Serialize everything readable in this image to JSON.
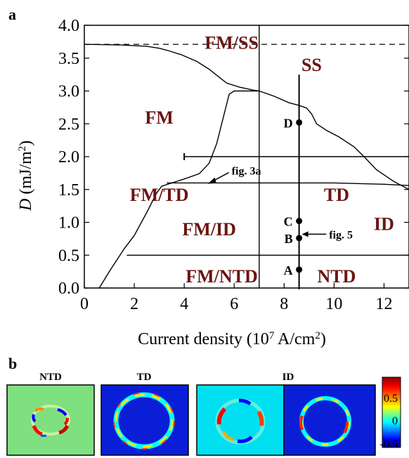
{
  "chart_data": {
    "type": "line",
    "panel_a": {
      "panel_label": "a",
      "xlabel": "Current density (10",
      "xlabel_sup": "7",
      "xlabel_tail": " A/cm",
      "xlabel_sup2": "2",
      "xlabel_close": ")",
      "ylabel": "D",
      "ylabel_unit": " (mJ/m",
      "ylabel_sup": "2",
      "ylabel_close": ")",
      "xlim": [
        0,
        13
      ],
      "ylim": [
        0,
        4.0
      ],
      "xticks": [
        0,
        2,
        4,
        6,
        8,
        10,
        12
      ],
      "yticks": [
        "0.0",
        "0.5",
        "1.0",
        "1.5",
        "2.0",
        "2.5",
        "3.0",
        "3.5",
        "4.0"
      ],
      "series": [
        {
          "x": [
            0,
            1.5,
            2.5,
            3.0,
            3.4,
            3.9,
            4.5,
            5.0,
            5.4,
            5.7,
            6.2,
            6.8,
            7.0
          ],
          "y": [
            3.71,
            3.7,
            3.68,
            3.65,
            3.61,
            3.55,
            3.45,
            3.33,
            3.21,
            3.12,
            3.06,
            3.01,
            3.0
          ]
        },
        {
          "x": [
            0.6,
            1.0,
            1.6,
            2.0,
            2.5,
            2.9,
            3.1,
            3.5,
            4.0,
            4.6,
            5.0,
            5.3,
            5.6,
            5.8,
            6.0,
            6.5,
            6.97
          ],
          "y": [
            0.0,
            0.25,
            0.6,
            0.8,
            1.15,
            1.45,
            1.55,
            1.6,
            1.66,
            1.74,
            1.9,
            2.2,
            2.65,
            2.95,
            3.0,
            3.0,
            3.0
          ]
        },
        {
          "x": [
            7.0,
            7.6,
            8.2,
            8.6,
            8.9,
            9.1,
            9.3,
            9.7,
            10.2,
            10.8,
            11.2,
            11.7,
            12.4,
            13.0
          ],
          "y": [
            3.0,
            2.92,
            2.82,
            2.78,
            2.74,
            2.65,
            2.5,
            2.4,
            2.3,
            2.15,
            2.0,
            1.8,
            1.62,
            1.5
          ]
        },
        {
          "x": [
            3.3,
            8.0,
            10.0,
            12.0,
            13.0
          ],
          "y": [
            1.6,
            1.6,
            1.6,
            1.58,
            1.56
          ]
        },
        {
          "x": [
            4.0,
            13.0
          ],
          "y": [
            2.0,
            2.0
          ]
        },
        {
          "x": [
            1.7,
            13.0
          ],
          "y": [
            0.5,
            0.5
          ]
        },
        {
          "x": [
            7.0,
            7.0
          ],
          "y": [
            0.0,
            4.0
          ]
        },
        {
          "x": [
            8.6,
            8.6
          ],
          "y": [
            -0.02,
            3.25
          ]
        }
      ],
      "dashed_line": {
        "y": 3.71
      },
      "points": [
        {
          "label": "D",
          "x": 8.6,
          "y": 2.52
        },
        {
          "label": "C",
          "x": 8.6,
          "y": 1.02
        },
        {
          "label": "B",
          "x": 8.6,
          "y": 0.76
        },
        {
          "label": "A",
          "x": 8.6,
          "y": 0.28
        }
      ],
      "regions": [
        {
          "label": "FM/SS",
          "x": 5.9,
          "y": 3.74
        },
        {
          "label": "SS",
          "x": 9.1,
          "y": 3.4
        },
        {
          "label": "FM",
          "x": 3.0,
          "y": 2.6
        },
        {
          "label": "FM/TD",
          "x": 3.0,
          "y": 1.42
        },
        {
          "label": "TD",
          "x": 10.1,
          "y": 1.42
        },
        {
          "label": "FM/ID",
          "x": 5.0,
          "y": 0.9
        },
        {
          "label": "ID",
          "x": 12.0,
          "y": 0.98
        },
        {
          "label": "FM/NTD",
          "x": 5.5,
          "y": 0.18
        },
        {
          "label": "NTD",
          "x": 10.1,
          "y": 0.18
        }
      ],
      "annotations": [
        {
          "text": "fig. 3a",
          "x": 5.9,
          "y": 1.78
        },
        {
          "text": "fig. 5",
          "x": 9.8,
          "y": 0.82
        }
      ]
    },
    "panel_b": {
      "panel_label": "b",
      "titles": [
        "NTD",
        "TD",
        "ID"
      ],
      "colorbar": {
        "ticks": [
          "0.5",
          "0",
          "-0.5"
        ],
        "colors": [
          "#8b0000",
          "#ff0000",
          "#ff8c00",
          "#ffff00",
          "#7fff7f",
          "#00ffff",
          "#0080ff",
          "#0000ff",
          "#00008b"
        ]
      }
    }
  }
}
